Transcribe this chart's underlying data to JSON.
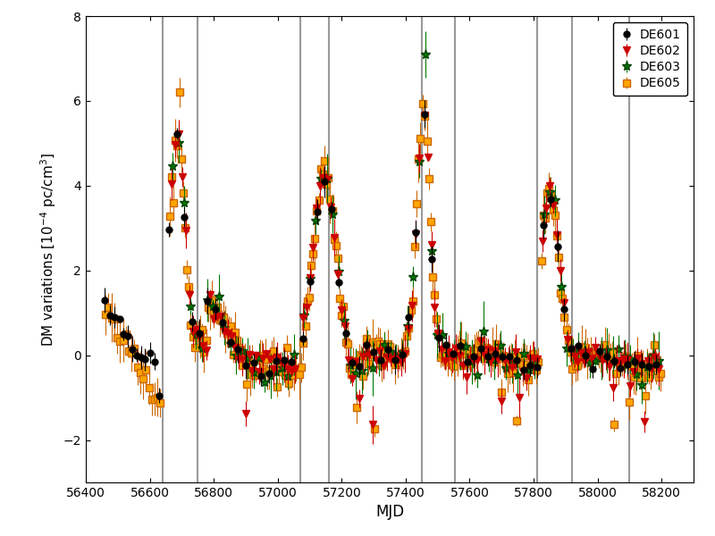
{
  "title": "",
  "xlabel": "MJD",
  "ylabel": "DM variations [10$^{-4}$ pc/cm$^3$]",
  "xlim": [
    56400,
    58300
  ],
  "ylim": [
    -3,
    8
  ],
  "yticks": [
    -2,
    0,
    2,
    4,
    6,
    8
  ],
  "xticks": [
    56400,
    56600,
    56800,
    57000,
    57200,
    57400,
    57600,
    57800,
    58000,
    58200
  ],
  "vlines": [
    56640,
    56750,
    57070,
    57160,
    57450,
    57555,
    57810,
    57920,
    58100
  ],
  "vline_color": "#999999",
  "bg_color": "#ffffff",
  "legend_entries": [
    "DE601",
    "DE602",
    "DE603",
    "DE605"
  ],
  "colors": {
    "DE601": "#000000",
    "DE602": "#cc0000",
    "DE603": "#007700",
    "DE605": "#ff8c00"
  },
  "markers": {
    "DE601": "o",
    "DE602": "v",
    "DE603": "*",
    "DE605": "s"
  },
  "markersizes": {
    "DE601": 5,
    "DE602": 6,
    "DE603": 8,
    "DE605": 6
  },
  "figsize": [
    8.0,
    6.0
  ],
  "dpi": 100
}
